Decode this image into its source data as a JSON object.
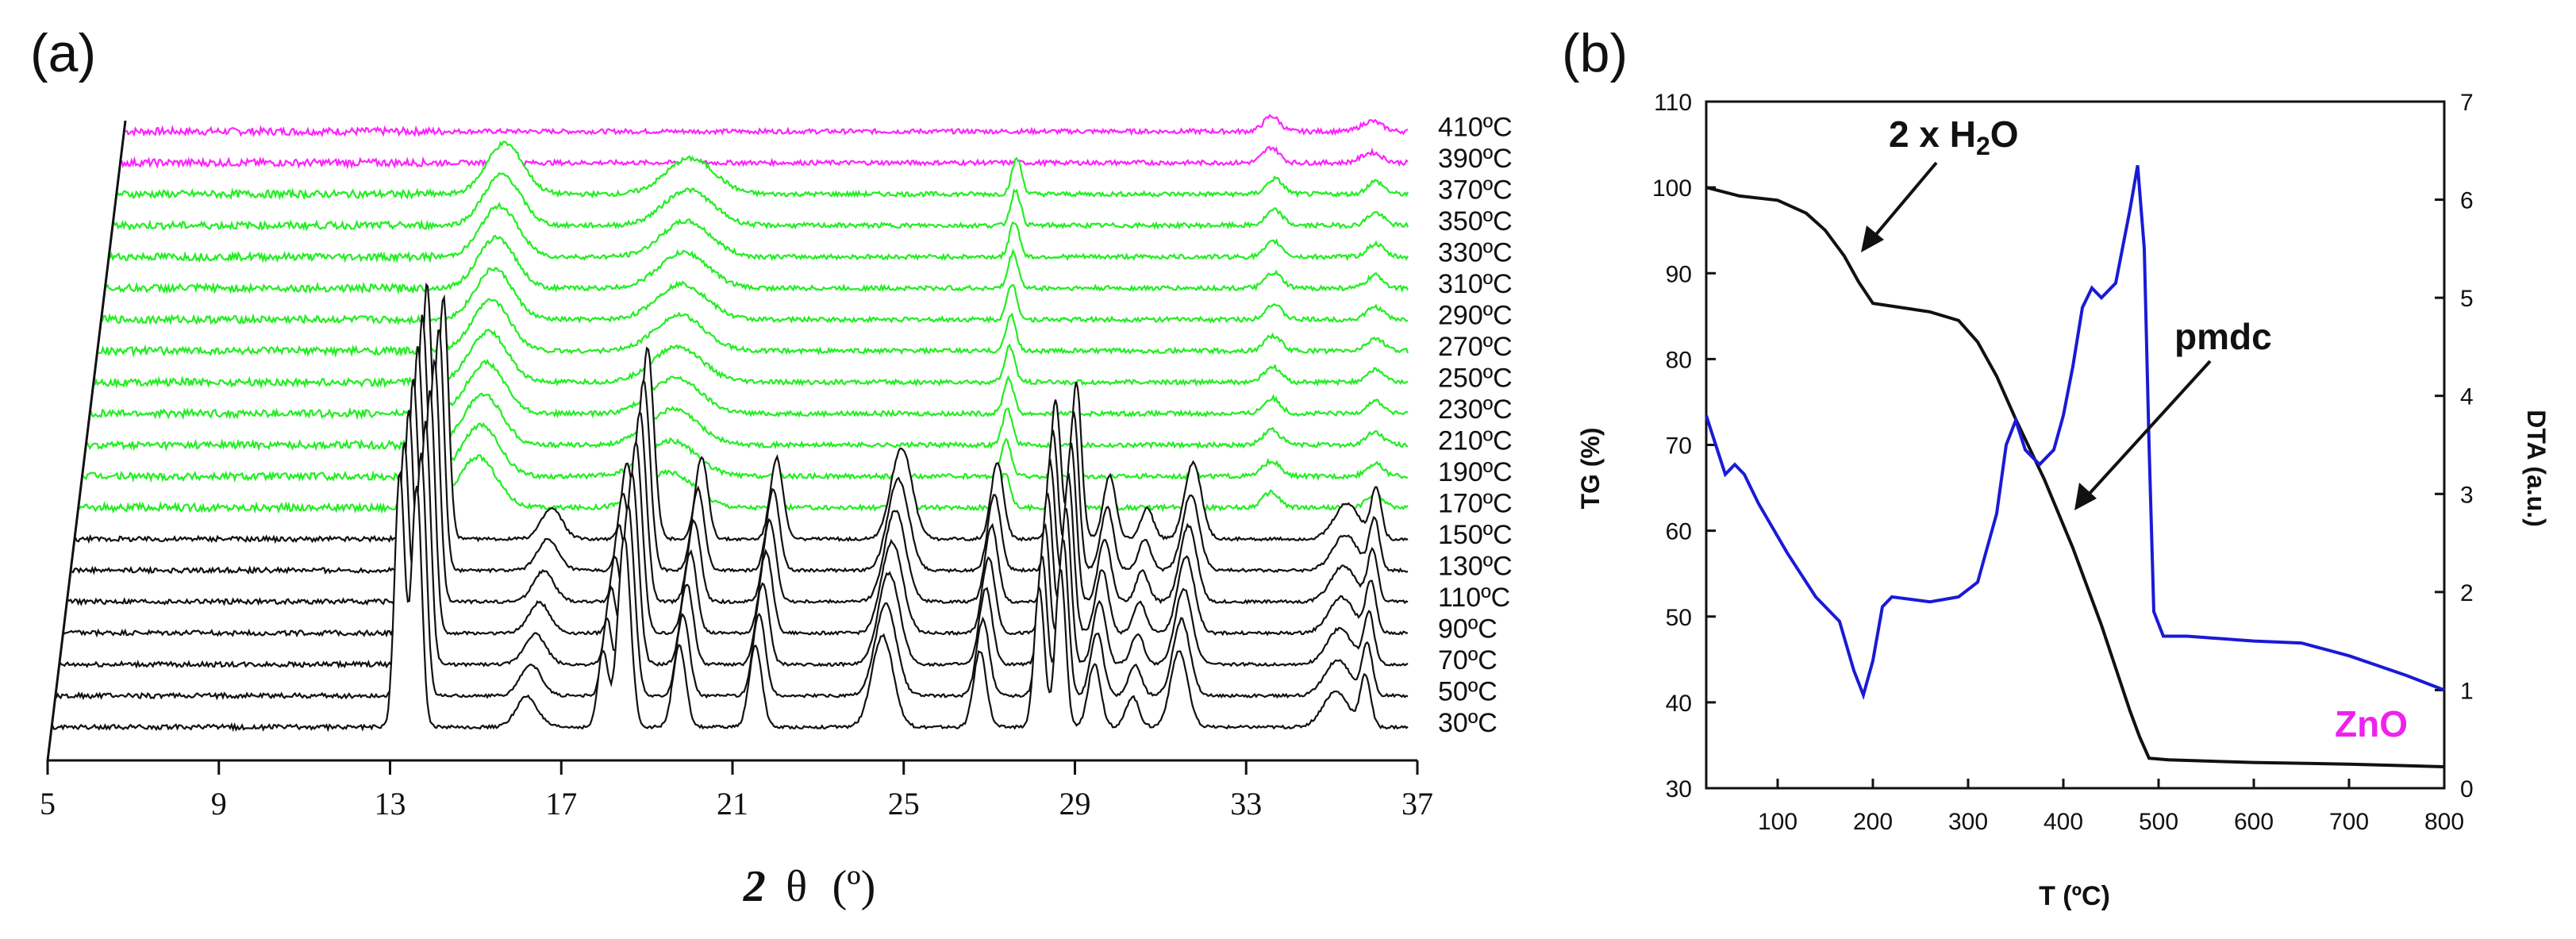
{
  "colors": {
    "green": "#22ee22",
    "magenta": "#ff22ff",
    "black": "#111111",
    "blue": "#1a1ad6",
    "zno": "#ee22ee"
  },
  "chart_data": [
    {
      "panel_label": "(a)",
      "type": "line",
      "title": "",
      "xlabel_symbol": "2",
      "xlabel_theta": "θ",
      "xlabel_unit": "(º)",
      "xlim": [
        5,
        37
      ],
      "xticks": [
        "5",
        "9",
        "13",
        "17",
        "21",
        "25",
        "29",
        "33",
        "37"
      ],
      "series": [
        {
          "name": "30ºC",
          "label": "30ºC",
          "phase": "black"
        },
        {
          "name": "50ºC",
          "label": "50ºC",
          "phase": "black"
        },
        {
          "name": "70ºC",
          "label": "70ºC",
          "phase": "black"
        },
        {
          "name": "90ºC",
          "label": "90ºC",
          "phase": "black"
        },
        {
          "name": "110ºC",
          "label": "110ºC",
          "phase": "black"
        },
        {
          "name": "130ºC",
          "label": "130ºC",
          "phase": "black"
        },
        {
          "name": "150ºC",
          "label": "150ºC",
          "phase": "black"
        },
        {
          "name": "170ºC",
          "label": "170ºC",
          "phase": "green"
        },
        {
          "name": "190ºC",
          "label": "190ºC",
          "phase": "green"
        },
        {
          "name": "210ºC",
          "label": "210ºC",
          "phase": "green"
        },
        {
          "name": "230ºC",
          "label": "230ºC",
          "phase": "green"
        },
        {
          "name": "250ºC",
          "label": "250ºC",
          "phase": "green"
        },
        {
          "name": "270ºC",
          "label": "270ºC",
          "phase": "green"
        },
        {
          "name": "290ºC",
          "label": "290ºC",
          "phase": "green"
        },
        {
          "name": "310ºC",
          "label": "310ºC",
          "phase": "green"
        },
        {
          "name": "330ºC",
          "label": "330ºC",
          "phase": "green"
        },
        {
          "name": "350ºC",
          "label": "350ºC",
          "phase": "green"
        },
        {
          "name": "370ºC",
          "label": "370ºC",
          "phase": "green"
        },
        {
          "name": "390ºC",
          "label": "390ºC",
          "phase": "magenta"
        },
        {
          "name": "410ºC",
          "label": "410ºC",
          "phase": "magenta"
        }
      ],
      "peaks": {
        "black": [
          [
            13.2,
            1.0,
            0.12
          ],
          [
            13.6,
            0.95,
            0.12
          ],
          [
            16.2,
            0.12,
            0.25
          ],
          [
            18.0,
            0.3,
            0.12
          ],
          [
            18.5,
            0.75,
            0.15
          ],
          [
            19.8,
            0.32,
            0.15
          ],
          [
            21.6,
            0.32,
            0.15
          ],
          [
            24.6,
            0.36,
            0.25
          ],
          [
            26.9,
            0.3,
            0.15
          ],
          [
            28.3,
            0.55,
            0.12
          ],
          [
            28.8,
            0.62,
            0.12
          ],
          [
            29.6,
            0.25,
            0.15
          ],
          [
            30.5,
            0.12,
            0.15
          ],
          [
            31.6,
            0.3,
            0.2
          ],
          [
            35.3,
            0.14,
            0.3
          ],
          [
            36.0,
            0.2,
            0.12
          ]
        ],
        "green": [
          [
            14.6,
            0.2,
            0.45
          ],
          [
            19.2,
            0.14,
            0.6
          ],
          [
            27.3,
            0.14,
            0.12
          ],
          [
            33.7,
            0.06,
            0.2
          ],
          [
            36.2,
            0.05,
            0.2
          ]
        ],
        "magenta": [
          [
            33.6,
            0.06,
            0.2
          ],
          [
            36.1,
            0.04,
            0.25
          ]
        ]
      }
    },
    {
      "panel_label": "(b)",
      "type": "line",
      "title": "",
      "xlabel": "T (ºC)",
      "ylabel": "TG (%)",
      "y2label": "DTA (a.u.)",
      "xlim": [
        25,
        800
      ],
      "ylim": [
        30,
        110
      ],
      "y2lim": [
        0,
        7
      ],
      "xticks": [
        "100",
        "200",
        "300",
        "400",
        "500",
        "600",
        "700",
        "800"
      ],
      "yticks": [
        "30",
        "40",
        "50",
        "60",
        "70",
        "80",
        "90",
        "100",
        "110"
      ],
      "y2ticks": [
        "0",
        "1",
        "2",
        "3",
        "4",
        "5",
        "6",
        "7"
      ],
      "series": [
        {
          "name": "TG",
          "axis": "left",
          "x": [
            25,
            60,
            100,
            130,
            150,
            170,
            185,
            200,
            230,
            260,
            290,
            310,
            330,
            350,
            380,
            410,
            440,
            470,
            480,
            490,
            510,
            600,
            700,
            800
          ],
          "y": [
            100,
            99,
            98.5,
            97,
            95,
            92,
            89,
            86.5,
            86,
            85.5,
            84.5,
            82,
            78,
            73,
            66,
            58,
            49,
            39,
            36,
            33.5,
            33.3,
            33,
            32.8,
            32.5
          ]
        },
        {
          "name": "DTA",
          "axis": "right",
          "x": [
            25,
            35,
            45,
            55,
            65,
            80,
            110,
            140,
            165,
            180,
            190,
            200,
            210,
            220,
            260,
            290,
            310,
            330,
            340,
            350,
            360,
            375,
            390,
            400,
            410,
            420,
            430,
            440,
            455,
            470,
            478,
            485,
            490,
            495,
            505,
            530,
            600,
            650,
            700,
            760,
            800
          ],
          "y": [
            3.8,
            3.5,
            3.2,
            3.3,
            3.2,
            2.9,
            2.4,
            1.95,
            1.7,
            1.2,
            0.95,
            1.3,
            1.85,
            1.95,
            1.9,
            1.95,
            2.1,
            2.8,
            3.5,
            3.75,
            3.45,
            3.3,
            3.45,
            3.8,
            4.3,
            4.9,
            5.1,
            5.0,
            5.15,
            5.9,
            6.35,
            5.5,
            3.5,
            1.8,
            1.55,
            1.55,
            1.5,
            1.48,
            1.35,
            1.15,
            1.0
          ]
        }
      ],
      "annotations": {
        "water_prefix": "2 x H",
        "water_sub": "2",
        "water_suffix": "O",
        "pmdc": "pmdc",
        "zno": "ZnO"
      }
    }
  ]
}
